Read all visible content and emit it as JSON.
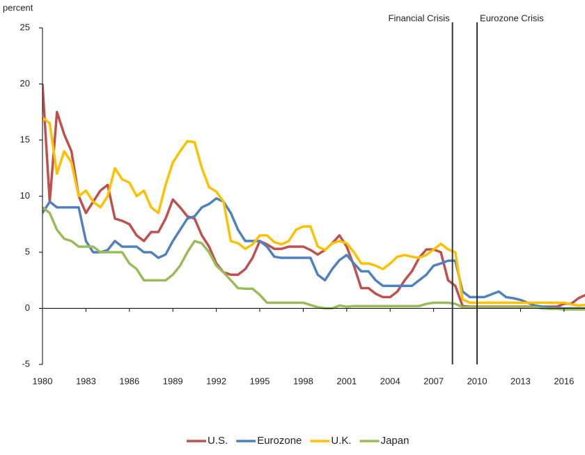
{
  "chart_data": {
    "type": "line",
    "ylabel": "percent",
    "x": [
      1980,
      1980.5,
      1981,
      1981.5,
      1982,
      1982.5,
      1983,
      1983.5,
      1984,
      1984.5,
      1985,
      1985.5,
      1986,
      1986.5,
      1987,
      1987.5,
      1988,
      1988.5,
      1989,
      1989.5,
      1990,
      1990.5,
      1991,
      1991.5,
      1992,
      1992.5,
      1993,
      1993.5,
      1994,
      1994.5,
      1995,
      1995.5,
      1996,
      1996.5,
      1997,
      1997.5,
      1998,
      1998.5,
      1999,
      1999.5,
      2000,
      2000.5,
      2001,
      2001.5,
      2002,
      2002.5,
      2003,
      2003.5,
      2004,
      2004.5,
      2005,
      2005.5,
      2006,
      2006.5,
      2007,
      2007.5,
      2008,
      2008.5,
      2009,
      2009.5,
      2010,
      2010.5,
      2011,
      2011.5,
      2012,
      2012.5,
      2013,
      2013.5,
      2014,
      2014.5,
      2015,
      2015.5,
      2016,
      2016.5,
      2017,
      2017.5
    ],
    "series": [
      {
        "name": "U.S.",
        "color": "#c0504d",
        "values": [
          20,
          9.5,
          17.5,
          15.5,
          14,
          10,
          8.5,
          9.5,
          10.5,
          11,
          8,
          7.8,
          7.5,
          6.5,
          6,
          6.8,
          6.8,
          8,
          9.7,
          9,
          8.2,
          8,
          6.5,
          5.5,
          4,
          3.2,
          3,
          3,
          3.5,
          4.5,
          6,
          5.7,
          5.3,
          5.3,
          5.5,
          5.5,
          5.5,
          5.2,
          4.8,
          5.2,
          5.8,
          6.5,
          5.5,
          3.8,
          1.8,
          1.8,
          1.3,
          1,
          1,
          1.5,
          2.5,
          3.3,
          4.5,
          5.25,
          5.25,
          5,
          2.5,
          2,
          0.2,
          0.15,
          0.15,
          0.15,
          0.15,
          0.15,
          0.15,
          0.15,
          0.15,
          0.15,
          0.15,
          0.15,
          0.15,
          0.15,
          0.4,
          0.4,
          0.9,
          1.2
        ]
      },
      {
        "name": "Eurozone",
        "color": "#4f81bd",
        "values": [
          8.5,
          9.5,
          9,
          9,
          9,
          9,
          6,
          5,
          5,
          5.2,
          6,
          5.5,
          5.5,
          5.5,
          5,
          5,
          4.5,
          4.8,
          6,
          7,
          8,
          8.2,
          9,
          9.3,
          9.8,
          9.5,
          8.5,
          7,
          6,
          6,
          6,
          5.5,
          4.6,
          4.5,
          4.5,
          4.5,
          4.5,
          4.5,
          3,
          2.5,
          3.5,
          4.3,
          4.75,
          4,
          3.3,
          3.3,
          2.5,
          2,
          2,
          2,
          2,
          2,
          2.5,
          3,
          3.8,
          4,
          4.25,
          4.25,
          1.5,
          1,
          1,
          1,
          1.25,
          1.5,
          1,
          0.9,
          0.75,
          0.5,
          0.25,
          0.15,
          0.05,
          0.05,
          0,
          0,
          0,
          0
        ]
      },
      {
        "name": "U.K.",
        "color": "#ffc000",
        "values": [
          17,
          16.5,
          12,
          14,
          13,
          10,
          10.5,
          9.5,
          9,
          10,
          12.5,
          11.5,
          11.2,
          10,
          10.5,
          9,
          8.5,
          11,
          13,
          14,
          14.9,
          14.8,
          12.5,
          10.8,
          10.4,
          9.5,
          6,
          5.8,
          5.3,
          5.7,
          6.5,
          6.5,
          5.9,
          5.7,
          6,
          7,
          7.3,
          7.3,
          5.5,
          5.2,
          5.8,
          6,
          5.8,
          5,
          4,
          4,
          3.8,
          3.5,
          4,
          4.6,
          4.75,
          4.6,
          4.5,
          4.75,
          5.25,
          5.75,
          5.25,
          5,
          0.8,
          0.5,
          0.5,
          0.5,
          0.5,
          0.5,
          0.5,
          0.5,
          0.5,
          0.5,
          0.5,
          0.5,
          0.5,
          0.5,
          0.5,
          0.35,
          0.25,
          0.3
        ]
      },
      {
        "name": "Japan",
        "color": "#9bbb59",
        "values": [
          9,
          8.5,
          7,
          6.2,
          6,
          5.5,
          5.5,
          5.5,
          5,
          5,
          5,
          5,
          4,
          3.5,
          2.5,
          2.5,
          2.5,
          2.5,
          3,
          3.8,
          5,
          6,
          5.8,
          5,
          3.8,
          3.2,
          2.5,
          1.8,
          1.75,
          1.75,
          1.2,
          0.5,
          0.5,
          0.5,
          0.5,
          0.5,
          0.5,
          0.3,
          0.1,
          0,
          0,
          0.25,
          0.15,
          0.2,
          0.2,
          0.2,
          0.2,
          0.2,
          0.2,
          0.2,
          0.2,
          0.2,
          0.2,
          0.4,
          0.5,
          0.5,
          0.5,
          0.4,
          0.1,
          0.1,
          0.1,
          0.1,
          0.1,
          0.1,
          0.1,
          0.1,
          0.1,
          0.1,
          0.1,
          0,
          -0.05,
          -0.05,
          -0.1,
          -0.1,
          -0.1,
          -0.1
        ]
      }
    ],
    "xlim": [
      1980,
      2017.45
    ],
    "xticks": [
      1980,
      1983,
      1986,
      1989,
      1992,
      1995,
      1998,
      2001,
      2004,
      2007,
      2010,
      2013,
      2016
    ],
    "ylim": [
      -5,
      25
    ],
    "yticks": [
      -5,
      0,
      5,
      10,
      15,
      20,
      25
    ],
    "annotations": [
      {
        "label": "Financial Crisis",
        "x": 2008.3
      },
      {
        "label": "Eurozone Crisis",
        "x": 2010
      }
    ],
    "legend": "bottom"
  }
}
